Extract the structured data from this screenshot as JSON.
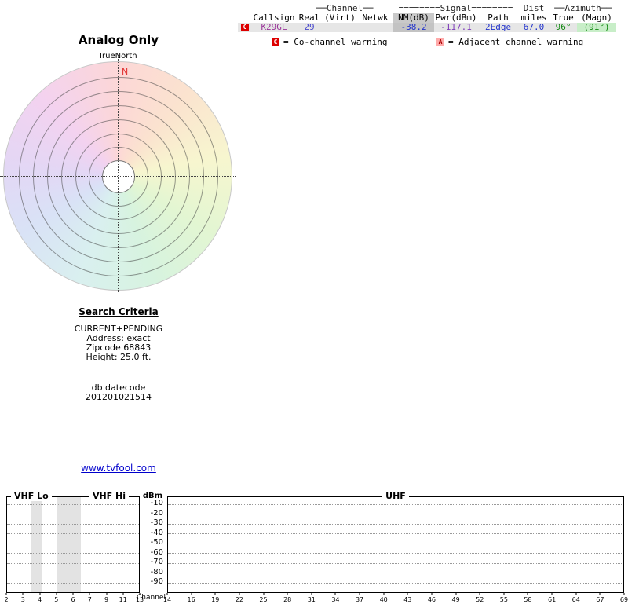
{
  "page": {
    "title_analog": "Analog Only",
    "true_north": "TrueNorth",
    "north": "N",
    "link": "www.tvfool.com"
  },
  "table": {
    "headers": {
      "channel": "──Channel──",
      "signal": "========Signal========",
      "dist": "Dist",
      "azimuth": "──Azimuth──",
      "callsign": "Callsign",
      "real": "Real",
      "virt": "(Virt)",
      "netwk": "Netwk",
      "nm": "NM(dB)",
      "pwr": "Pwr(dBm)",
      "path": "Path",
      "miles": "miles",
      "true_az": "True",
      "magn": "(Magn)"
    },
    "rows": [
      {
        "warn": "C",
        "callsign": "K29GL",
        "real": "29",
        "virt": "",
        "netwk": "",
        "nm": "-38.2",
        "pwr": "-117.1",
        "path": "2Edge",
        "miles": "67.0",
        "true_az": "96°",
        "magn": "(91°)"
      }
    ],
    "legend": [
      {
        "badge": "C",
        "text": "= Co-channel warning"
      },
      {
        "badge": "A",
        "text": "= Adjacent channel warning"
      }
    ]
  },
  "search": {
    "title": "Search Criteria",
    "lines": [
      "CURRENT+PENDING",
      "Address: exact",
      "Zipcode 68843",
      "Height: 25.0 ft."
    ],
    "db": [
      "db datecode",
      "201201021514"
    ]
  },
  "chart": {
    "vhf_lo": "VHF Lo",
    "vhf_hi": "VHF Hi",
    "uhf": "UHF",
    "dbm": "dBm",
    "channel_label": "Channel",
    "y_ticks": [
      "-10",
      "-20",
      "-30",
      "-40",
      "-50",
      "-60",
      "-70",
      "-80",
      "-90"
    ],
    "vhf_channels": [
      "2",
      "3",
      "4",
      "5",
      "6",
      "7",
      "9",
      "11",
      "13"
    ],
    "uhf_channels": [
      "14",
      "16",
      "19",
      "22",
      "25",
      "28",
      "31",
      "34",
      "37",
      "40",
      "43",
      "46",
      "49",
      "52",
      "55",
      "58",
      "61",
      "64",
      "67",
      "69"
    ]
  },
  "colors": {
    "co_channel_badge": "#dd0000",
    "adjacent_badge": "#ffaaaa",
    "north_label": "#e03030",
    "link": "#0000cc",
    "row_highlight": "#e6e6e6",
    "nm_cell": "#c3c3c3",
    "magn_cell": "#c8eec8"
  },
  "chart_data": [
    {
      "type": "table",
      "title": "Analog Only — receivable stations",
      "columns": [
        "Callsign",
        "Real",
        "(Virt)",
        "Netwk",
        "NM(dB)",
        "Pwr(dBm)",
        "Path",
        "miles",
        "True",
        "(Magn)"
      ],
      "rows": [
        [
          "K29GL",
          "29",
          "",
          "",
          "-38.2",
          "-117.1",
          "2Edge",
          "67.0",
          "96°",
          "(91°)"
        ]
      ],
      "warnings": [
        [
          "K29GL",
          "C = Co-channel warning"
        ]
      ]
    },
    {
      "type": "bar",
      "title": "Channel signal strength",
      "ylabel": "dBm",
      "ylim": [
        -90,
        -10
      ],
      "categories": [
        "2",
        "3",
        "4",
        "5",
        "6",
        "7",
        "9",
        "11",
        "13",
        "14",
        "16",
        "19",
        "22",
        "25",
        "28",
        "31",
        "34",
        "37",
        "40",
        "43",
        "46",
        "49",
        "52",
        "55",
        "58",
        "61",
        "64",
        "67",
        "69"
      ],
      "values": [],
      "sections": [
        "VHF Lo",
        "VHF Hi",
        "UHF"
      ],
      "grid": true,
      "note": "No visible bars; the only station K29GL (-117.1 dBm) is below the -90 dBm chart floor. Two gray shaded bands appear in the VHF Lo region near channels 3 and 5-6."
    },
    {
      "type": "scatter",
      "title": "Azimuth radar plot (TrueNorth up)",
      "points": [],
      "note": "Concentric range rings on a pastel compass-hue disc; dotted crosshair axes; no station vectors drawn. Station azimuth from table: 96° true (91° magnetic)."
    }
  ]
}
